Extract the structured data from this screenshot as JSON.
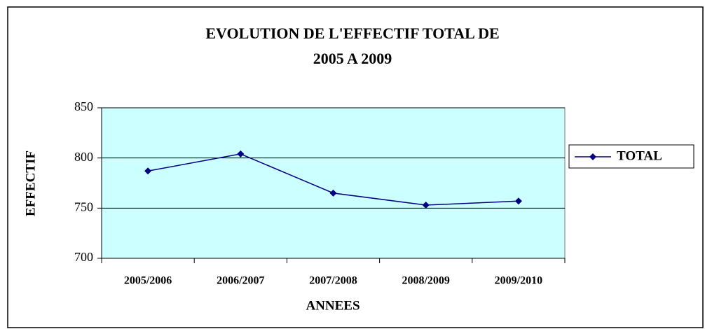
{
  "chart_data": {
    "type": "line",
    "title": [
      "EVOLUTION DE L'EFFECTIF TOTAL DE",
      "2005 A 2009"
    ],
    "x_label": "ANNEES",
    "y_label": "EFFECTIF",
    "categories": [
      "2005/2006",
      "2006/2007",
      "2007/2008",
      "2008/2009",
      "2009/2010"
    ],
    "series": [
      {
        "name": "TOTAL",
        "color": "#000080",
        "values": [
          787,
          804,
          765,
          753,
          757
        ]
      }
    ],
    "ylim": [
      700,
      850
    ],
    "yticks": [
      700,
      750,
      800,
      850
    ],
    "grid": true,
    "legend": "right",
    "plot_background": "#ccffff"
  }
}
